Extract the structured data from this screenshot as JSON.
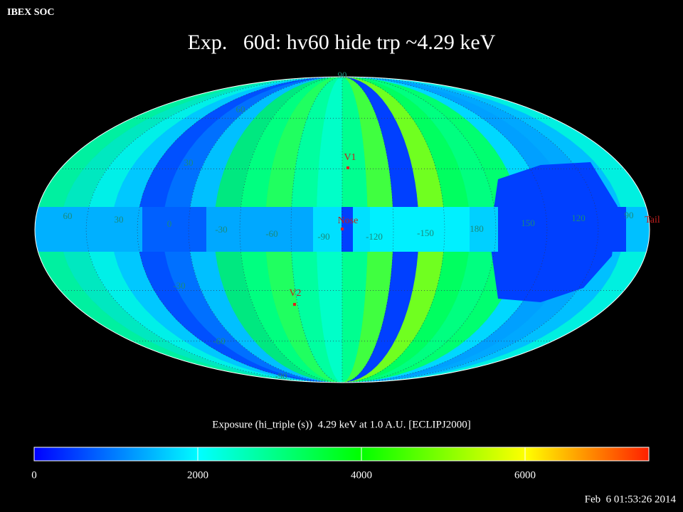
{
  "header": {
    "source": "IBEX SOC",
    "title": "Exp.   60d: hv60 hide trp ~4.29 keV",
    "timestamp": "Feb  6 01:53:26 2014"
  },
  "map": {
    "longitude_labels": [
      "60",
      "30",
      "0",
      "-30",
      "-60",
      "-90",
      "-120",
      "-150",
      "180",
      "150",
      "120",
      "90"
    ],
    "latitude_labels": [
      "90",
      "60",
      "30",
      "-30",
      "-60",
      "-90"
    ],
    "markers": [
      "V1",
      "Nose",
      "V2",
      "Tail"
    ]
  },
  "colorbar": {
    "caption": "Exposure (hi_triple (s))  4.29 keV at 1.0 A.U. [ECLIPJ2000]",
    "range": [
      0,
      7513
    ],
    "ticks": [
      0,
      2000,
      4000,
      6000
    ]
  }
}
